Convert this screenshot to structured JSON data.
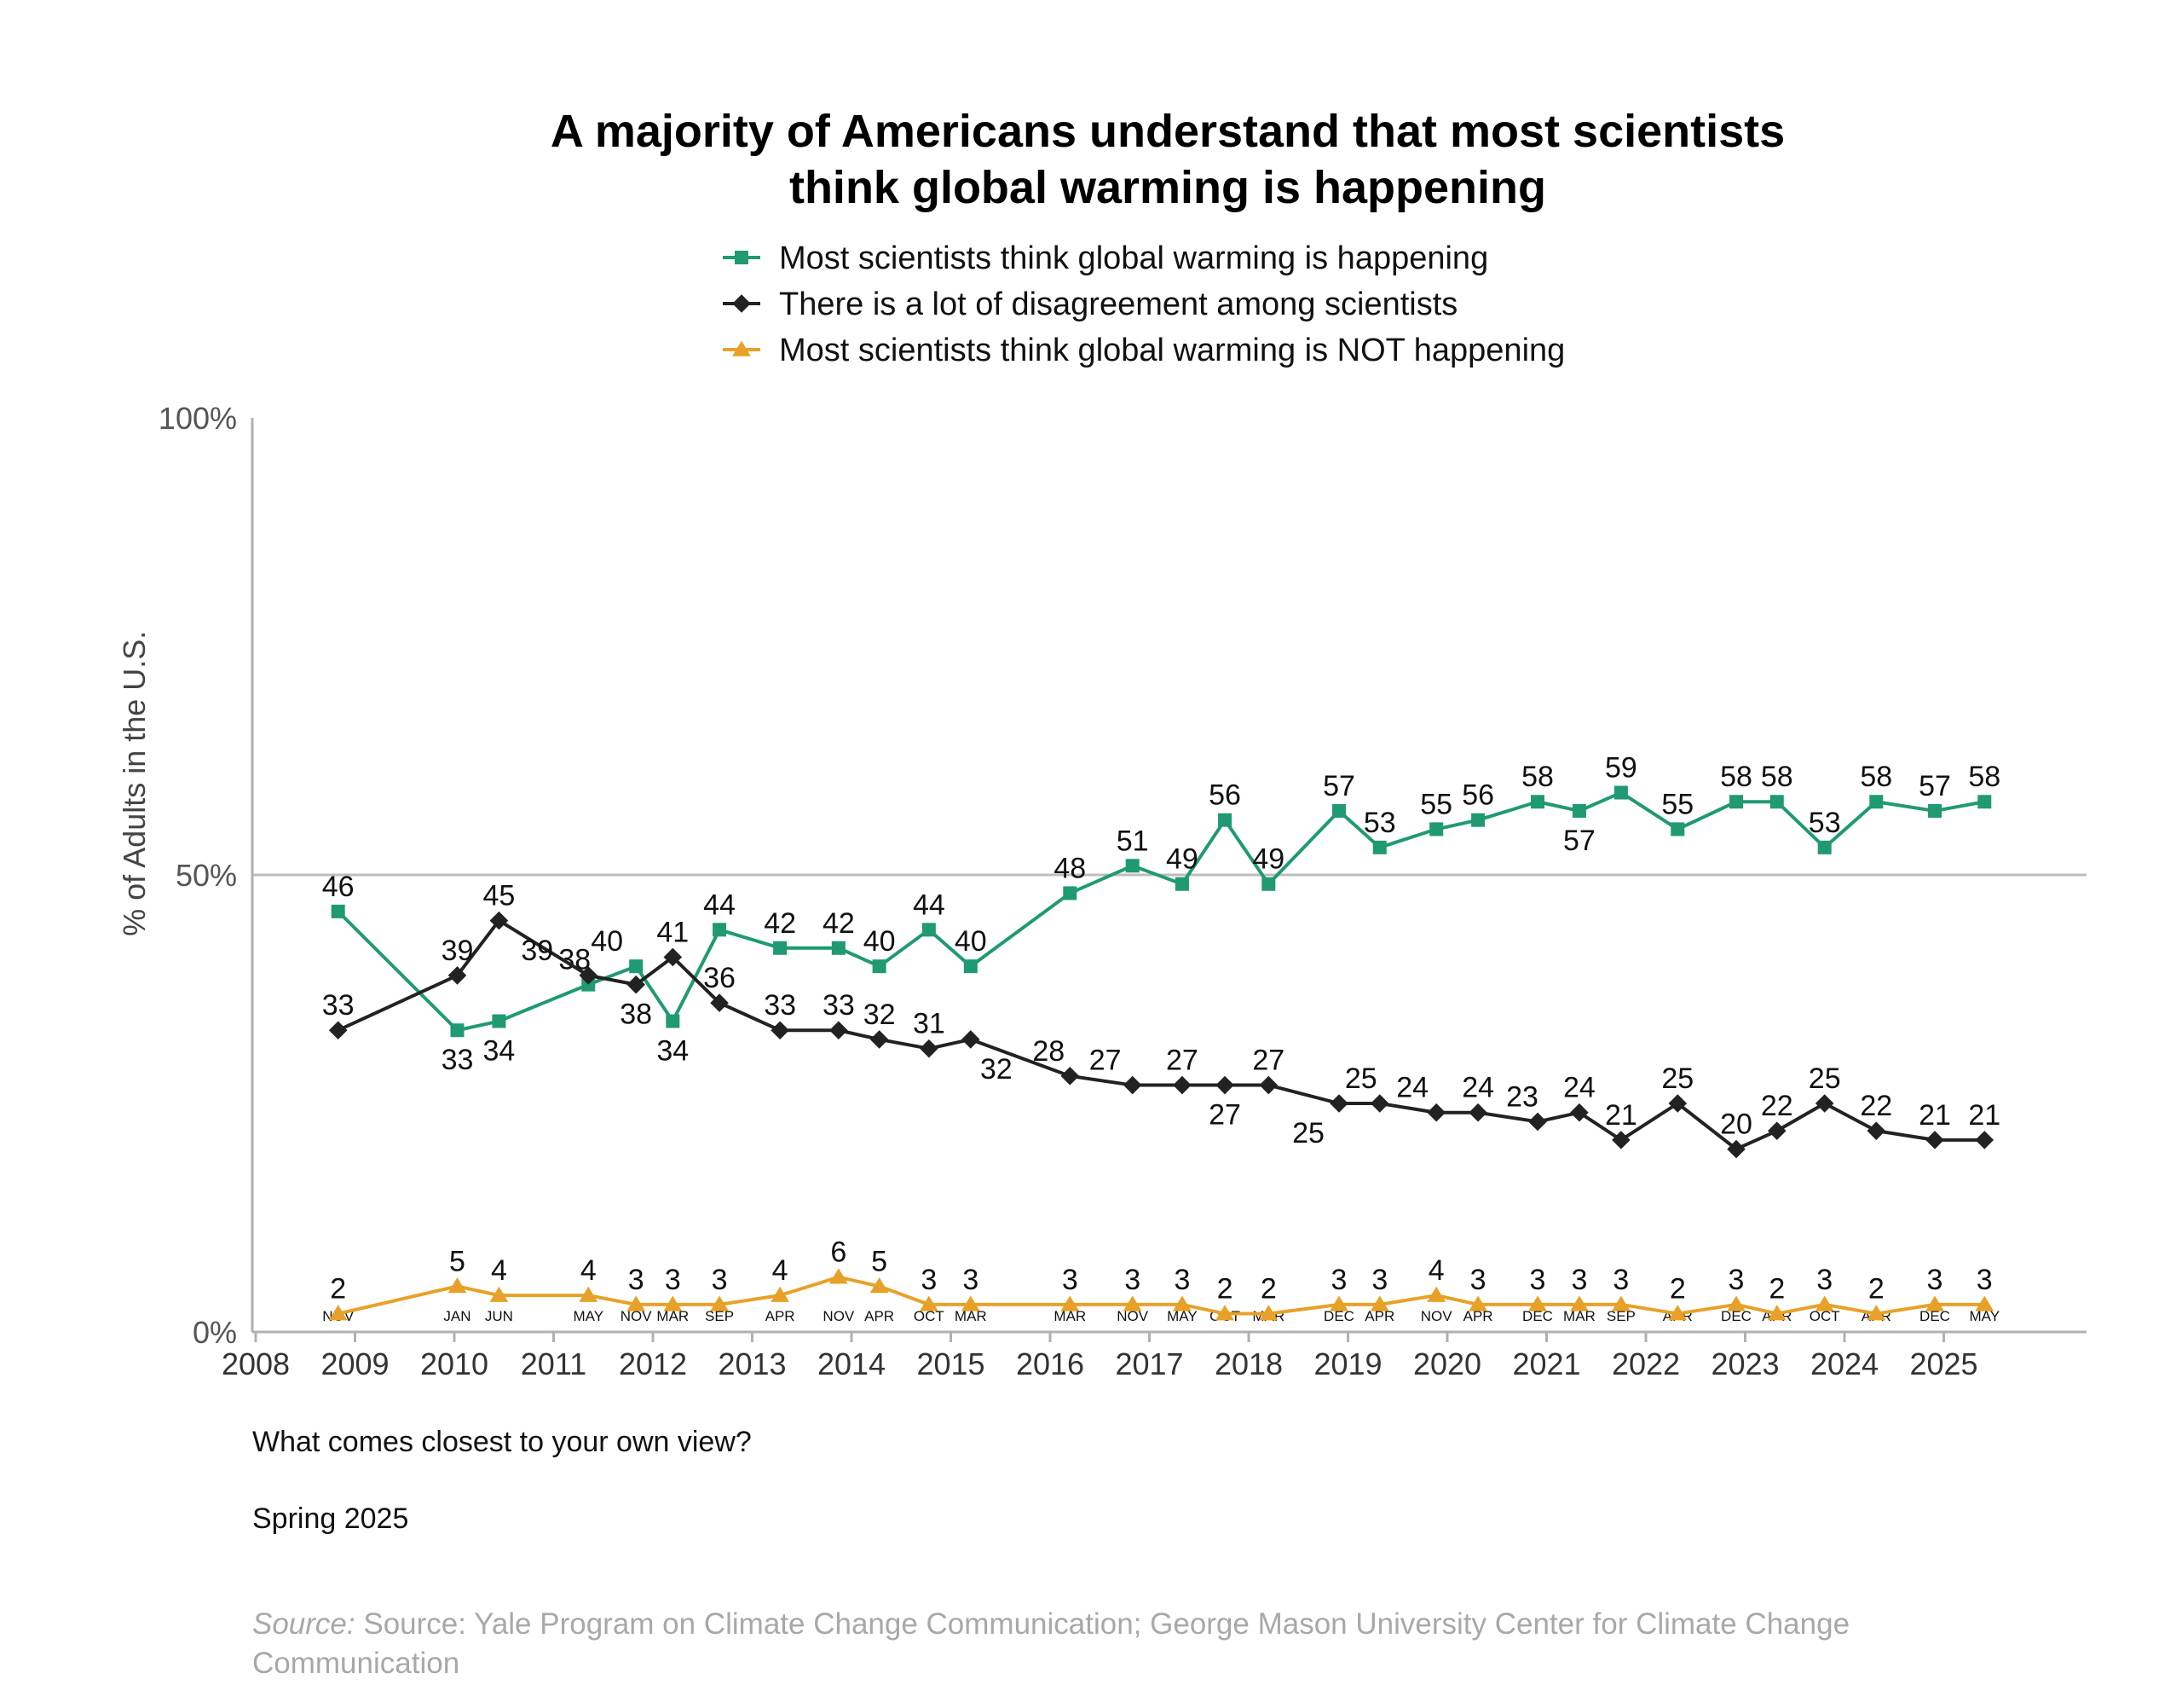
{
  "chart_data": {
    "type": "line",
    "title_lines": [
      "A majority of Americans understand that most scientists",
      "think global warming is happening"
    ],
    "ylabel": "% of Adults in the U.S.",
    "y_ticks": [
      {
        "value": 0,
        "label": "0%"
      },
      {
        "value": 50,
        "label": "50%"
      },
      {
        "value": 100,
        "label": "100%"
      }
    ],
    "ylim": [
      0,
      100
    ],
    "xlim": [
      2008,
      2026.4
    ],
    "year_ticks": [
      "2008",
      "2009",
      "2010",
      "2011",
      "2012",
      "2013",
      "2014",
      "2015",
      "2016",
      "2017",
      "2018",
      "2019",
      "2020",
      "2021",
      "2022",
      "2023",
      "2024",
      "2025"
    ],
    "reference_line": 50,
    "grid": false,
    "legend_placement": "top-center",
    "question": "What comes closest to your own view?",
    "wave": "Spring 2025",
    "source_prefix": "Source:",
    "source_lines": [
      "Source: Yale Program on Climate Change Communication; George Mason University Center for Climate Change",
      "Communication"
    ],
    "survey_points": [
      {
        "x": 2008.83,
        "label": "NOV"
      },
      {
        "x": 2010.03,
        "label": "JAN"
      },
      {
        "x": 2010.45,
        "label": "JUN"
      },
      {
        "x": 2011.35,
        "label": "MAY"
      },
      {
        "x": 2011.83,
        "label": "NOV"
      },
      {
        "x": 2012.2,
        "label": "MAR"
      },
      {
        "x": 2012.67,
        "label": "SEP"
      },
      {
        "x": 2013.28,
        "label": "APR"
      },
      {
        "x": 2013.87,
        "label": "NOV"
      },
      {
        "x": 2014.28,
        "label": "APR"
      },
      {
        "x": 2014.78,
        "label": "OCT"
      },
      {
        "x": 2015.2,
        "label": "MAR"
      },
      {
        "x": 2016.2,
        "label": "MAR"
      },
      {
        "x": 2016.83,
        "label": "NOV"
      },
      {
        "x": 2017.33,
        "label": "MAY"
      },
      {
        "x": 2017.76,
        "label": "OCT"
      },
      {
        "x": 2018.2,
        "label": "MAR"
      },
      {
        "x": 2018.91,
        "label": "DEC"
      },
      {
        "x": 2019.32,
        "label": "APR"
      },
      {
        "x": 2019.89,
        "label": "NOV"
      },
      {
        "x": 2020.31,
        "label": "APR"
      },
      {
        "x": 2020.91,
        "label": "DEC"
      },
      {
        "x": 2021.33,
        "label": "MAR"
      },
      {
        "x": 2021.75,
        "label": "SEP"
      },
      {
        "x": 2022.32,
        "label": "APR"
      },
      {
        "x": 2022.91,
        "label": "DEC"
      },
      {
        "x": 2023.32,
        "label": "APR"
      },
      {
        "x": 2023.8,
        "label": "OCT"
      },
      {
        "x": 2024.32,
        "label": "APR"
      },
      {
        "x": 2024.91,
        "label": "DEC"
      },
      {
        "x": 2025.41,
        "label": "MAY"
      }
    ],
    "series": [
      {
        "name": "Most scientists think global warming is happening",
        "color": "#1f9a72",
        "marker": "square",
        "values": [
          46,
          33,
          34,
          38,
          40,
          34,
          44,
          42,
          42,
          40,
          44,
          40,
          48,
          51,
          49,
          56,
          49,
          57,
          53,
          55,
          56,
          58,
          57,
          59,
          55,
          58,
          58,
          53,
          58,
          57,
          58
        ]
      },
      {
        "name": "There is a lot of disagreement among scientists",
        "color": "#222222",
        "marker": "diamond",
        "values": [
          33,
          39,
          45,
          39,
          38,
          41,
          36,
          33,
          33,
          32,
          31,
          32,
          28,
          27,
          27,
          27,
          27,
          25,
          25,
          24,
          24,
          23,
          24,
          21,
          25,
          20,
          22,
          25,
          22,
          21,
          21
        ]
      },
      {
        "name": "Most scientists think global warming is NOT happening",
        "color": "#e8a128",
        "marker": "triangle",
        "values": [
          2,
          5,
          4,
          4,
          3,
          3,
          3,
          4,
          6,
          5,
          3,
          3,
          3,
          3,
          3,
          2,
          2,
          3,
          3,
          4,
          3,
          3,
          3,
          3,
          2,
          3,
          2,
          3,
          2,
          3,
          3
        ]
      }
    ]
  }
}
